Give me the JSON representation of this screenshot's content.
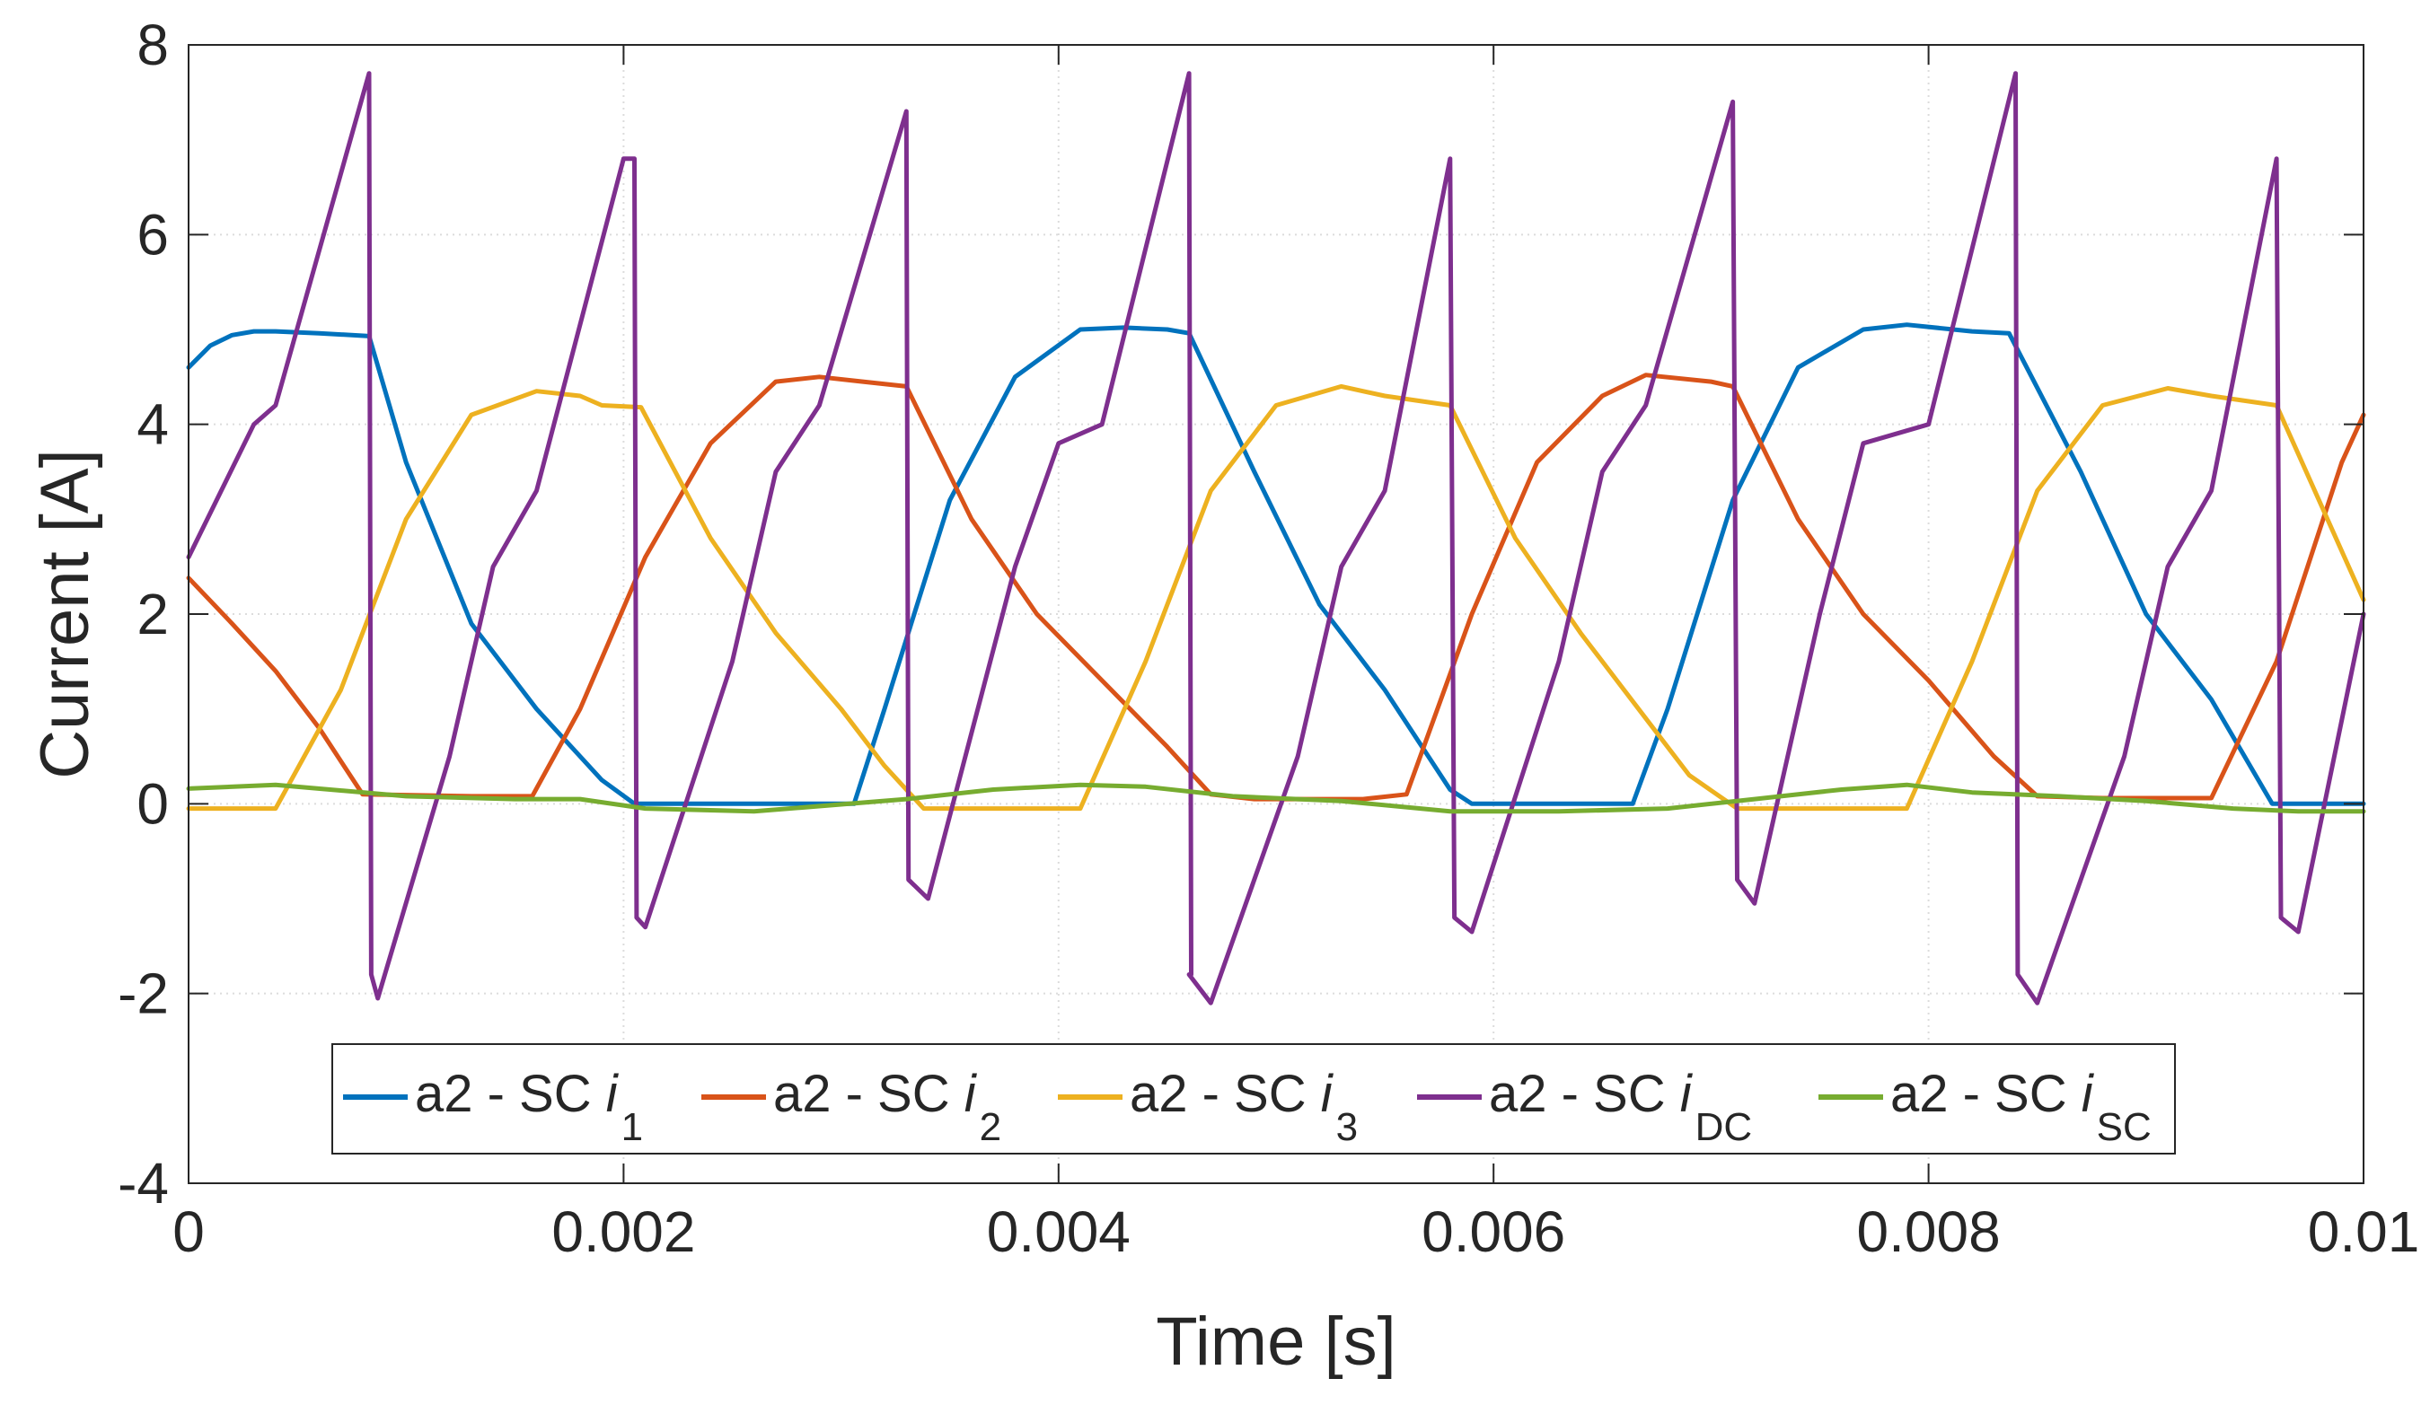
{
  "chart_data": {
    "type": "line",
    "title": "",
    "xlabel": "Time  [s]",
    "ylabel": "Current [A]",
    "xlim": [
      0,
      0.01
    ],
    "ylim": [
      -4,
      8
    ],
    "xticks": [
      0,
      0.002,
      0.004,
      0.006,
      0.008,
      0.01
    ],
    "xtick_labels": [
      "0",
      "0.002",
      "0.004",
      "0.006",
      "0.008",
      "0.01"
    ],
    "yticks": [
      -4,
      -2,
      0,
      2,
      4,
      6,
      8
    ],
    "ytick_labels": [
      "-4",
      "-2",
      "0",
      "2",
      "4",
      "6",
      "8"
    ],
    "grid": true,
    "legend_location": "bottom-center",
    "series": [
      {
        "name": "a2 - SC i1",
        "label_prefix": "a2 - SC ",
        "label_var": "i",
        "label_sub": "1",
        "color": "#0072BD",
        "x": [
          0,
          0.0001,
          0.0002,
          0.0003,
          0.0004,
          0.0006,
          0.00083,
          0.001,
          0.0013,
          0.0016,
          0.0019,
          0.00205,
          0.0025,
          0.0029,
          0.00306,
          0.0032,
          0.0035,
          0.0038,
          0.0041,
          0.0043,
          0.0045,
          0.0046,
          0.0049,
          0.0052,
          0.0055,
          0.0058,
          0.0059,
          0.0065,
          0.00664,
          0.0068,
          0.0071,
          0.0074,
          0.0077,
          0.0079,
          0.0082,
          0.00837,
          0.0087,
          0.009,
          0.0093,
          0.00958,
          0.01
        ],
        "y": [
          4.6,
          4.83,
          4.94,
          4.98,
          4.98,
          4.96,
          4.93,
          3.6,
          1.9,
          1.0,
          0.25,
          0.0,
          0.0,
          0.0,
          0.0,
          1.0,
          3.2,
          4.5,
          5.0,
          5.02,
          5.0,
          4.96,
          3.5,
          2.1,
          1.2,
          0.15,
          0.0,
          0.0,
          0.0,
          1.0,
          3.2,
          4.6,
          5.0,
          5.05,
          4.98,
          4.96,
          3.5,
          2.0,
          1.1,
          0.0,
          0.0
        ]
      },
      {
        "name": "a2 - SC i2",
        "label_prefix": "a2 - SC ",
        "label_var": "i",
        "label_sub": "2",
        "color": "#D95319",
        "x": [
          0,
          0.0002,
          0.0004,
          0.0006,
          0.0008,
          0.0013,
          0.00158,
          0.0018,
          0.0021,
          0.0024,
          0.0027,
          0.0029,
          0.0031,
          0.0033,
          0.0036,
          0.0039,
          0.0042,
          0.0045,
          0.0047,
          0.0049,
          0.0054,
          0.0056,
          0.0059,
          0.0062,
          0.0065,
          0.0067,
          0.007,
          0.0071,
          0.0074,
          0.0077,
          0.008,
          0.0083,
          0.0085,
          0.0088,
          0.0093,
          0.0096,
          0.0099,
          0.01
        ],
        "y": [
          2.38,
          1.9,
          1.4,
          0.8,
          0.1,
          0.08,
          0.08,
          1.0,
          2.6,
          3.8,
          4.45,
          4.5,
          4.45,
          4.4,
          3.0,
          2.0,
          1.3,
          0.6,
          0.1,
          0.05,
          0.05,
          0.1,
          2.0,
          3.6,
          4.3,
          4.52,
          4.45,
          4.4,
          3.0,
          2.0,
          1.3,
          0.5,
          0.08,
          0.06,
          0.06,
          1.5,
          3.6,
          4.1
        ]
      },
      {
        "name": "a2 - SC i3",
        "label_prefix": "a2 - SC ",
        "label_var": "i",
        "label_sub": "3",
        "color": "#EDB120",
        "x": [
          0,
          0.0002,
          0.0004,
          0.0007,
          0.001,
          0.0013,
          0.0016,
          0.0018,
          0.0019,
          0.00208,
          0.0024,
          0.0027,
          0.003,
          0.0032,
          0.00338,
          0.0036,
          0.0041,
          0.0044,
          0.0047,
          0.005,
          0.0053,
          0.0055,
          0.0058,
          0.0061,
          0.0064,
          0.0067,
          0.0069,
          0.00712,
          0.0074,
          0.0079,
          0.0082,
          0.0085,
          0.0088,
          0.0091,
          0.0093,
          0.0096,
          0.01
        ],
        "y": [
          -0.05,
          -0.05,
          -0.05,
          1.2,
          3.0,
          4.1,
          4.35,
          4.3,
          4.2,
          4.18,
          2.8,
          1.8,
          1.0,
          0.4,
          -0.05,
          -0.05,
          -0.05,
          1.5,
          3.3,
          4.2,
          4.4,
          4.3,
          4.2,
          2.8,
          1.8,
          0.9,
          0.3,
          -0.05,
          -0.05,
          -0.05,
          1.5,
          3.3,
          4.2,
          4.38,
          4.3,
          4.2,
          2.15
        ]
      },
      {
        "name": "a2 - SC iDC",
        "label_prefix": "a2 - SC ",
        "label_var": "i",
        "label_sub": "DC",
        "color": "#7E2F8E",
        "x": [
          0,
          0.0003,
          0.0004,
          0.00083,
          0.00084,
          0.00087,
          0.0012,
          0.0014,
          0.0016,
          0.002,
          0.00205,
          0.00206,
          0.0021,
          0.0025,
          0.0027,
          0.0029,
          0.0033,
          0.00331,
          0.0034,
          0.0038,
          0.004,
          0.0042,
          0.0046,
          0.00461,
          0.0046,
          0.0047,
          0.0051,
          0.0053,
          0.0055,
          0.0058,
          0.00582,
          0.0059,
          0.0063,
          0.0065,
          0.0067,
          0.0071,
          0.00712,
          0.0072,
          0.0075,
          0.0077,
          0.008,
          0.0084,
          0.00841,
          0.0085,
          0.0089,
          0.0091,
          0.0093,
          0.0096,
          0.00962,
          0.0097,
          0.01
        ],
        "y": [
          2.6,
          4.0,
          4.2,
          7.7,
          -1.8,
          -2.05,
          0.5,
          2.5,
          3.3,
          6.8,
          6.8,
          -1.2,
          -1.3,
          1.5,
          3.5,
          4.2,
          7.3,
          -0.8,
          -1.0,
          2.5,
          3.8,
          4.0,
          7.7,
          -1.8,
          -1.8,
          -2.1,
          0.5,
          2.5,
          3.3,
          6.8,
          -1.2,
          -1.35,
          1.5,
          3.5,
          4.2,
          7.4,
          -0.8,
          -1.05,
          2.0,
          3.8,
          4.0,
          7.7,
          -1.8,
          -2.1,
          0.5,
          2.5,
          3.3,
          6.8,
          -1.2,
          -1.35,
          2.0
        ]
      },
      {
        "name": "a2 - SC iSC",
        "label_prefix": "a2 - SC ",
        "label_var": "i",
        "label_sub": "SC",
        "color": "#77AC30",
        "x": [
          0,
          0.0004,
          0.001,
          0.0015,
          0.0018,
          0.0021,
          0.0026,
          0.0033,
          0.0037,
          0.0041,
          0.0044,
          0.0048,
          0.0053,
          0.0058,
          0.0063,
          0.0068,
          0.0072,
          0.0076,
          0.0079,
          0.0082,
          0.0086,
          0.009,
          0.0094,
          0.0097,
          0.01
        ],
        "y": [
          0.16,
          0.2,
          0.08,
          0.05,
          0.05,
          -0.05,
          -0.08,
          0.05,
          0.15,
          0.2,
          0.18,
          0.08,
          0.03,
          -0.08,
          -0.08,
          -0.05,
          0.05,
          0.15,
          0.2,
          0.12,
          0.08,
          0.03,
          -0.05,
          -0.08,
          -0.08
        ]
      }
    ]
  }
}
